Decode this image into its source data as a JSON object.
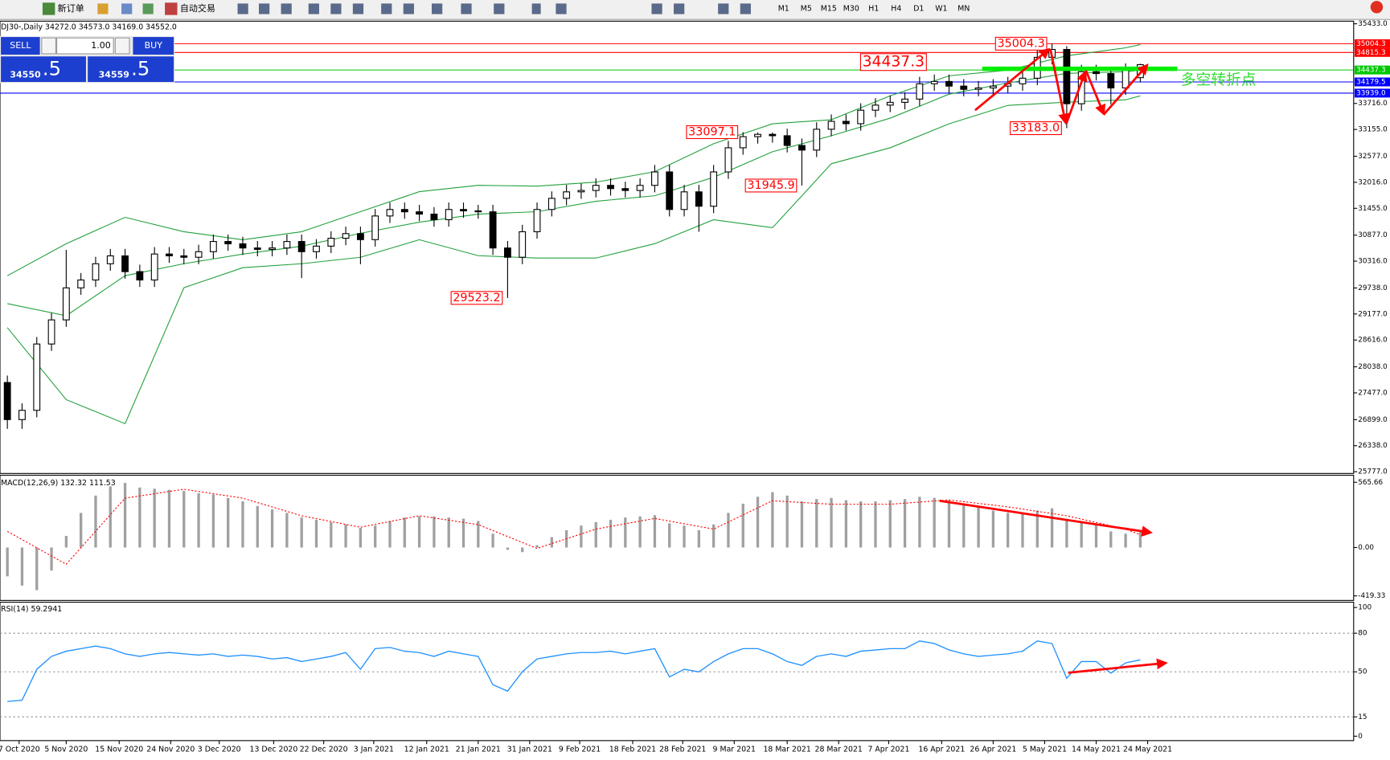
{
  "toolbar": {
    "new_order": "新订单",
    "auto_trading": "自动交易",
    "timeframes": [
      "M1",
      "M5",
      "M15",
      "M30",
      "H1",
      "H4",
      "D1",
      "W1",
      "MN"
    ]
  },
  "trade_panel": {
    "sell": "SELL",
    "buy": "BUY",
    "lots": "1.00",
    "bid_main": "34550",
    "bid_fraction": ".5",
    "ask_main": "34559",
    "ask_fraction": ".5"
  },
  "chart_data": [
    {
      "type": "candlestick",
      "title": "DJ30-,Daily  34272.0 34573.0 34169.0 34552.0",
      "xlim": [
        -0.5,
        91.5
      ],
      "ylim": [
        25777,
        35433
      ],
      "xticks": [
        {
          "value": 0.8,
          "label": "7 Oct 2020"
        },
        {
          "value": 4.0,
          "label": "5 Nov 2020"
        },
        {
          "value": 7.6,
          "label": "15 Nov 2020"
        },
        {
          "value": 11.1,
          "label": "24 Nov 2020"
        },
        {
          "value": 14.4,
          "label": "3 Dec 2020"
        },
        {
          "value": 18.1,
          "label": "13 Dec 2020"
        },
        {
          "value": 21.5,
          "label": "22 Dec 2020"
        },
        {
          "value": 24.9,
          "label": "3 Jan 2021"
        },
        {
          "value": 28.5,
          "label": "12 Jan 2021"
        },
        {
          "value": 32.0,
          "label": "21 Jan 2021"
        },
        {
          "value": 35.5,
          "label": "31 Jan 2021"
        },
        {
          "value": 38.9,
          "label": "9 Feb 2021"
        },
        {
          "value": 42.5,
          "label": "18 Feb 2021"
        },
        {
          "value": 45.9,
          "label": "28 Feb 2021"
        },
        {
          "value": 49.4,
          "label": "9 Mar 2021"
        },
        {
          "value": 53.0,
          "label": "18 Mar 2021"
        },
        {
          "value": 56.5,
          "label": "28 Mar 2021"
        },
        {
          "value": 59.9,
          "label": "7 Apr 2021"
        },
        {
          "value": 63.5,
          "label": "16 Apr 2021"
        },
        {
          "value": 67.0,
          "label": "26 Apr 2021"
        },
        {
          "value": 70.5,
          "label": "5 May 2021"
        },
        {
          "value": 74.0,
          "label": "14 May 2021"
        },
        {
          "value": 77.5,
          "label": "24 May 2021"
        }
      ],
      "yticks": [
        {
          "value": 35433,
          "label": "35433.0"
        },
        {
          "value": 33716,
          "label": "33716.0"
        },
        {
          "value": 33155,
          "label": "33155.0"
        },
        {
          "value": 32577,
          "label": "32577.0"
        },
        {
          "value": 32016,
          "label": "32016.0"
        },
        {
          "value": 31455,
          "label": "31455.0"
        },
        {
          "value": 30877,
          "label": "30877.0"
        },
        {
          "value": 30316,
          "label": "30316.0"
        },
        {
          "value": 29738,
          "label": "29738.0"
        },
        {
          "value": 29177,
          "label": "29177.0"
        },
        {
          "value": 28616,
          "label": "28616.0"
        },
        {
          "value": 28038,
          "label": "28038.0"
        },
        {
          "value": 27477,
          "label": "27477.0"
        },
        {
          "value": 26899,
          "label": "26899.0"
        },
        {
          "value": 26338,
          "label": "26338.0"
        },
        {
          "value": 25777,
          "label": "25777.0"
        }
      ],
      "open": [
        27700,
        26900,
        27100,
        28530,
        29050,
        29740,
        29910,
        30260,
        30430,
        30090,
        29910,
        30470,
        30430,
        30400,
        30520,
        30740,
        30690,
        30600,
        30570,
        30600,
        30740,
        30520,
        30640,
        30810,
        30910,
        30780,
        31290,
        31430,
        31380,
        31330,
        31210,
        31430,
        31400,
        31380,
        30600,
        30400,
        30950,
        31430,
        31670,
        31810,
        31840,
        31950,
        31880,
        31840,
        31950,
        32240,
        31430,
        31810,
        31500,
        32240,
        32760,
        33000,
        33050,
        33020,
        32810,
        32710,
        33160,
        33330,
        33280,
        33570,
        33680,
        33740,
        33810,
        34140,
        34190,
        34090,
        34020,
        34050,
        34090,
        34140,
        34260,
        34710,
        34880,
        33710,
        34400,
        34360,
        34050,
        34272
      ],
      "high": [
        27850,
        27250,
        28680,
        29200,
        30560,
        30060,
        30410,
        30580,
        30580,
        30240,
        30620,
        30620,
        30580,
        30670,
        30890,
        30890,
        30840,
        30750,
        30750,
        30890,
        30890,
        30790,
        30960,
        31060,
        31060,
        31440,
        31580,
        31580,
        31530,
        31480,
        31580,
        31580,
        31530,
        31530,
        30750,
        31100,
        31580,
        31820,
        31960,
        31990,
        32100,
        32100,
        32030,
        32100,
        32390,
        32390,
        31960,
        31960,
        32390,
        32910,
        33097.1,
        33090,
        33090,
        33170,
        32960,
        33310,
        33480,
        33480,
        33720,
        33830,
        33890,
        33960,
        34290,
        34340,
        34340,
        34240,
        34200,
        34240,
        34290,
        34410,
        34860,
        35004.3,
        34950,
        34550,
        34550,
        34510,
        34580,
        34573
      ],
      "low": [
        26700,
        26700,
        26950,
        28380,
        28900,
        29590,
        29760,
        30110,
        29940,
        29760,
        29760,
        30280,
        30250,
        30250,
        30370,
        30540,
        30450,
        30420,
        30420,
        30450,
        29950,
        30370,
        30490,
        30660,
        30250,
        30630,
        31140,
        31230,
        31180,
        31060,
        31060,
        31250,
        31230,
        30450,
        29523.2,
        30250,
        30800,
        31280,
        31520,
        31660,
        31690,
        31730,
        31690,
        31690,
        31800,
        31280,
        31280,
        30950,
        31350,
        32090,
        32610,
        32850,
        32870,
        32660,
        31945.9,
        32560,
        33010,
        33130,
        33130,
        33420,
        33530,
        33590,
        33660,
        33990,
        33940,
        33870,
        33870,
        33900,
        33940,
        33990,
        34110,
        34560,
        33183.0,
        33560,
        34210,
        33700,
        33900,
        34169
      ],
      "close": [
        26900,
        27100,
        28530,
        29050,
        29740,
        29910,
        30260,
        30430,
        30090,
        29910,
        30470,
        30430,
        30400,
        30520,
        30740,
        30690,
        30600,
        30570,
        30600,
        30740,
        30520,
        30640,
        30810,
        30910,
        30780,
        31290,
        31430,
        31380,
        31330,
        31210,
        31430,
        31400,
        31380,
        30600,
        30400,
        30950,
        31430,
        31670,
        31810,
        31840,
        31950,
        31880,
        31840,
        31950,
        32240,
        31430,
        31810,
        31500,
        32240,
        32760,
        33000,
        33050,
        33020,
        32810,
        32710,
        33160,
        33330,
        33280,
        33570,
        33680,
        33740,
        33810,
        34140,
        34190,
        34090,
        34020,
        34050,
        34090,
        34140,
        34260,
        34710,
        34880,
        33710,
        34400,
        34360,
        34050,
        34430,
        34552
      ],
      "bands": {
        "color": "#22a03c",
        "x": [
          0,
          4,
          8,
          12,
          16,
          20,
          24,
          28,
          32,
          36,
          40,
          44,
          48,
          52,
          56,
          60,
          64,
          68,
          72,
          76,
          77
        ],
        "upper": [
          30002,
          30692,
          31261,
          30951,
          30778,
          30951,
          31382,
          31813,
          31950,
          31933,
          32019,
          32244,
          32847,
          33278,
          33364,
          33881,
          34312,
          34433,
          34743,
          34916,
          34985
        ],
        "middle": [
          29399,
          29140,
          30002,
          30261,
          30468,
          30640,
          30916,
          31157,
          31330,
          31382,
          31606,
          31726,
          32123,
          32675,
          33019,
          33399,
          33916,
          34157,
          34364,
          34399,
          34433
        ],
        "lower": [
          28882,
          27330,
          26813,
          29744,
          30175,
          30261,
          30399,
          30778,
          30433,
          30382,
          30382,
          30692,
          31209,
          31037,
          32416,
          32761,
          33278,
          33674,
          33743,
          33795,
          33881
        ]
      },
      "levels": [
        {
          "value": 35004.3,
          "label": "35004.3",
          "color": "#ff0000"
        },
        {
          "value": 34815.3,
          "label": "34815.3",
          "color": "#ff0000"
        },
        {
          "value": 34437.3,
          "label": "34437.3",
          "color": "#00c800"
        },
        {
          "value": 34179.5,
          "label": "34179.5",
          "color": "#0000ff"
        },
        {
          "value": 33939,
          "label": "33939.0",
          "color": "#0000ff"
        }
      ],
      "annotations": [
        {
          "value": 35004.3,
          "label": "35004.3"
        },
        {
          "value": 34437.3,
          "label": "34437.3"
        },
        {
          "value": 33097.1,
          "label": "33097.1"
        },
        {
          "value": 31945.9,
          "label": "31945.9"
        },
        {
          "value": 29523.2,
          "label": "29523.2"
        },
        {
          "value": 33183.0,
          "label": "33183.0"
        }
      ],
      "callout": "多空转折点"
    },
    {
      "type": "macd",
      "title": "MACD(12,26,9) 132.32 111.53",
      "ylim": [
        -451,
        619
      ],
      "yticks": [
        565.66,
        {
          "value": 0,
          "label": "0.00"
        },
        -419.33
      ],
      "histogram": [
        -250,
        -330,
        -370,
        -200,
        100,
        300,
        450,
        530,
        560,
        520,
        510,
        500,
        490,
        470,
        460,
        430,
        400,
        360,
        330,
        300,
        260,
        240,
        220,
        200,
        170,
        190,
        230,
        260,
        270,
        270,
        260,
        250,
        230,
        120,
        -20,
        -40,
        20,
        90,
        150,
        190,
        220,
        240,
        260,
        270,
        280,
        210,
        190,
        150,
        200,
        300,
        380,
        440,
        480,
        450,
        400,
        420,
        430,
        410,
        400,
        400,
        410,
        420,
        440,
        430,
        410,
        380,
        350,
        320,
        300,
        290,
        320,
        340,
        240,
        220,
        200,
        140,
        120,
        132.32
      ],
      "histogram_color": "#a0a0a0",
      "signal": {
        "color": "#ff0000",
        "x": [
          0,
          4,
          8,
          12,
          16,
          20,
          24,
          28,
          32,
          36,
          40,
          44,
          48,
          52,
          56,
          60,
          64,
          68,
          72,
          76,
          77
        ],
        "values": [
          140,
          -145,
          428,
          505,
          428,
          275,
          176,
          275,
          199,
          -8,
          160,
          252,
          160,
          405,
          375,
          375,
          413,
          352,
          275,
          160,
          111.53
        ]
      }
    },
    {
      "type": "line",
      "title": "RSI(14) 59.2941",
      "ylim": [
        0,
        100
      ],
      "yticks": [
        100,
        80,
        50,
        15,
        0
      ],
      "color": "#1e90ff",
      "values": [
        27,
        28,
        52,
        62,
        66,
        68,
        70,
        68,
        64,
        62,
        64,
        65,
        64,
        63,
        64,
        62,
        63,
        62,
        60,
        61,
        58,
        60,
        62,
        65,
        52,
        68,
        69,
        66,
        65,
        62,
        66,
        64,
        62,
        40,
        35,
        50,
        60,
        62,
        64,
        65,
        65,
        66,
        64,
        66,
        68,
        46,
        52,
        50,
        58,
        64,
        68,
        68,
        64,
        58,
        55,
        62,
        64,
        62,
        66,
        67,
        68,
        68,
        74,
        72,
        67,
        64,
        62,
        63,
        64,
        66,
        74,
        72,
        45,
        58,
        58,
        49,
        57,
        59.2941
      ]
    }
  ]
}
